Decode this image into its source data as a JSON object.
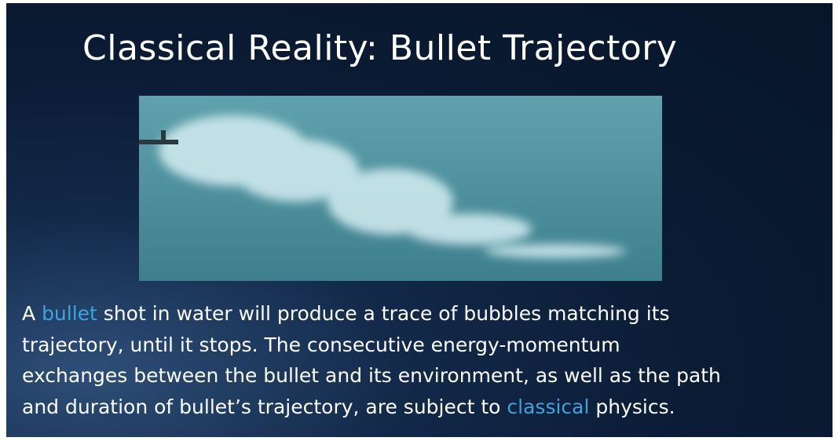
{
  "title": "Classical Reality: Bullet Trajectory",
  "body": {
    "lines": [
      [
        "A ",
        "bullet",
        " shot in water will produce a trace of bubbles matching its"
      ],
      [
        "trajectory, until it stops. The consecutive energy-momentum"
      ],
      [
        "exchanges between the bullet and its environment, as well as the path"
      ],
      [
        "and duration of bullet’s trajectory, are subject to ",
        "classical",
        " physics."
      ]
    ]
  }
}
